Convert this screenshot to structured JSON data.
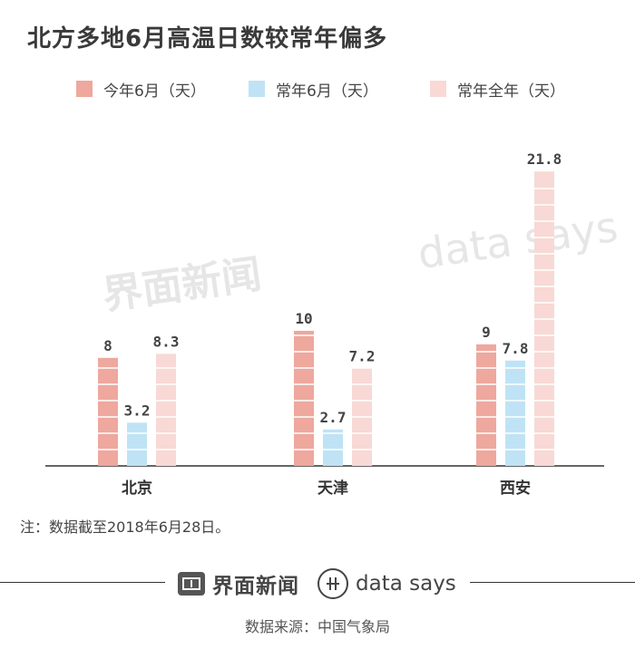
{
  "title": "北方多地6月高温日数较常年偏多",
  "note": "注：数据截至2018年6月28日。",
  "footer": {
    "brand_jiemian": "界面新闻",
    "brand_datasays": "data says",
    "source": "数据来源：中国气象局"
  },
  "watermark": {
    "jiemian": "界面新闻",
    "datasays": "data says"
  },
  "colors": {
    "series_this_june": "#eea89e",
    "series_normal_june": "#bfe3f5",
    "series_normal_year": "#f8d9d5",
    "axis": "#333333"
  },
  "chart_data": {
    "type": "bar",
    "title": "北方多地6月高温日数较常年偏多",
    "categories": [
      "北京",
      "天津",
      "西安"
    ],
    "series": [
      {
        "name": "今年6月（天）",
        "values": [
          8,
          10,
          9
        ],
        "labels": [
          "8",
          "10",
          "9"
        ]
      },
      {
        "name": "常年6月（天）",
        "values": [
          3.2,
          2.7,
          7.8
        ],
        "labels": [
          "3.2",
          "2.7",
          "7.8"
        ]
      },
      {
        "name": "常年全年（天）",
        "values": [
          8.3,
          7.2,
          21.8
        ],
        "labels": [
          "8.3",
          "7.2",
          "21.8"
        ]
      }
    ],
    "legend_position": "top",
    "grid": false,
    "ylim": [
      0,
      22
    ]
  }
}
